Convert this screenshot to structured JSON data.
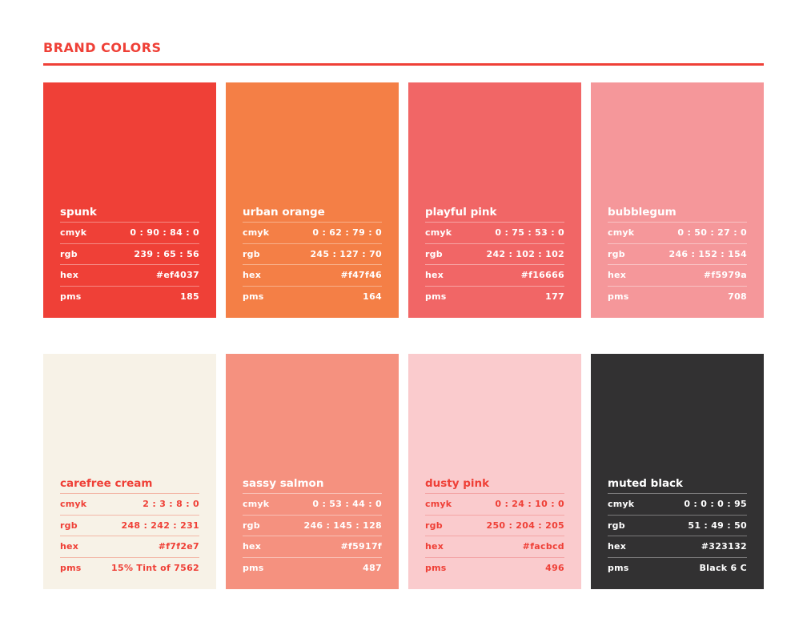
{
  "header": {
    "title": "BRAND COLORS"
  },
  "labels": {
    "cmyk": "cmyk",
    "rgb": "rgb",
    "hex": "hex",
    "pms": "pms"
  },
  "swatches": [
    {
      "name": "spunk",
      "cmyk": "0 : 90 : 84 : 0",
      "rgb": "239 : 65 : 56",
      "hex": "#ef4037",
      "pms": "185",
      "background": "#ef4037",
      "text_color": "#ffffff",
      "rule_color": "#f58a84"
    },
    {
      "name": "urban orange",
      "cmyk": "0 : 62 : 79 : 0",
      "rgb": "245 : 127 : 70",
      "hex": "#f47f46",
      "pms": "164",
      "background": "#f47f46",
      "text_color": "#ffffff",
      "rule_color": "#f8b08a"
    },
    {
      "name": "playful pink",
      "cmyk": "0 : 75 : 53 : 0",
      "rgb": "242 : 102 : 102",
      "hex": "#f16666",
      "pms": "177",
      "background": "#f16666",
      "text_color": "#ffffff",
      "rule_color": "#f7a3a3"
    },
    {
      "name": "bubblegum",
      "cmyk": "0 : 50 : 27 : 0",
      "rgb": "246 : 152 : 154",
      "hex": "#f5979a",
      "pms": "708",
      "background": "#f5979a",
      "text_color": "#ffffff",
      "rule_color": "#f9c2c3"
    },
    {
      "name": "carefree cream",
      "cmyk": "2 : 3 : 8 : 0",
      "rgb": "248 : 242 : 231",
      "hex": "#f7f2e7",
      "pms": "15% Tint of 7562",
      "background": "#f7f2e7",
      "text_color": "#ef4037",
      "rule_color": "#f3b8a8"
    },
    {
      "name": "sassy salmon",
      "cmyk": "0 : 53 : 44 : 0",
      "rgb": "246 : 145 : 128",
      "hex": "#f5917f",
      "pms": "487",
      "background": "#f5917f",
      "text_color": "#ffffff",
      "rule_color": "#f9bfb4"
    },
    {
      "name": "dusty pink",
      "cmyk": "0 : 24 : 10 : 0",
      "rgb": "250 : 204 : 205",
      "hex": "#facbcd",
      "pms": "496",
      "background": "#facbcd",
      "text_color": "#ef4037",
      "rule_color": "#f4a5a6"
    },
    {
      "name": "muted black",
      "cmyk": "0 : 0 : 0 : 95",
      "rgb": "51 : 49 : 50",
      "hex": "#323132",
      "pms": "Black 6 C",
      "background": "#323132",
      "text_color": "#ffffff",
      "rule_color": "#7a797a"
    }
  ]
}
